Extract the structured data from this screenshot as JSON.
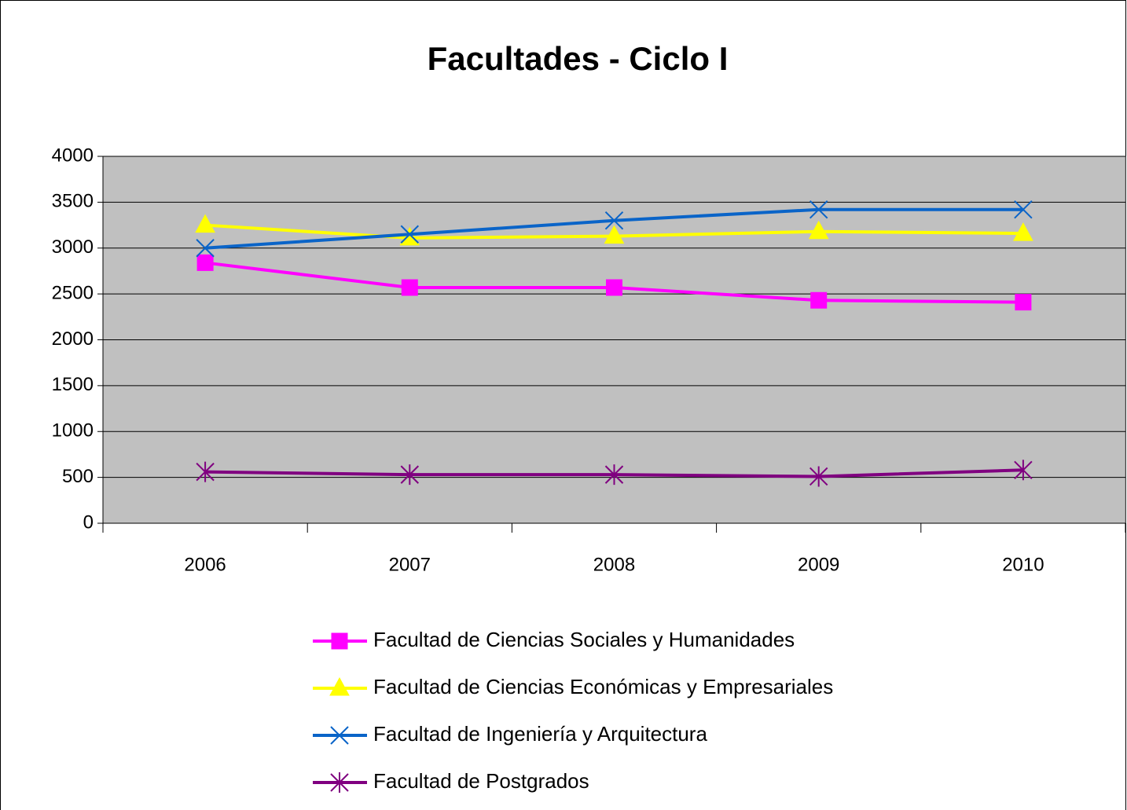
{
  "chart_data": {
    "type": "line",
    "title": "Facultades - Ciclo I",
    "categories": [
      "2006",
      "2007",
      "2008",
      "2009",
      "2010"
    ],
    "series": [
      {
        "name": "Facultad de Ciencias Sociales y Humanidades",
        "color": "#ff00ff",
        "marker": "square",
        "values": [
          2840,
          2570,
          2570,
          2430,
          2410
        ]
      },
      {
        "name": "Facultad de Ciencias Económicas y Empresariales",
        "color": "#ffff00",
        "marker": "triangle",
        "values": [
          3250,
          3110,
          3130,
          3180,
          3160
        ]
      },
      {
        "name": "Facultad de Ingeniería y Arquitectura",
        "color": "#0a64c8",
        "marker": "x",
        "values": [
          3000,
          3150,
          3300,
          3420,
          3420
        ]
      },
      {
        "name": "Facultad de Postgrados",
        "color": "#800080",
        "marker": "star",
        "values": [
          560,
          530,
          530,
          510,
          580
        ]
      }
    ],
    "ylim": [
      0,
      4000
    ],
    "yticks": [
      0,
      500,
      1000,
      1500,
      2000,
      2500,
      3000,
      3500,
      4000
    ],
    "grid": true,
    "plot_background": "#c0c0c0",
    "legend": "bottom"
  }
}
